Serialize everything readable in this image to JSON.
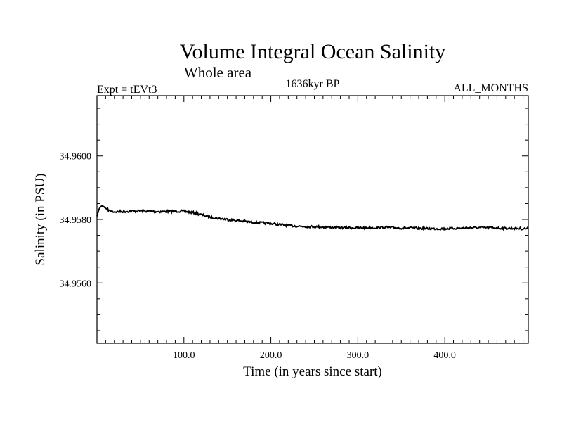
{
  "chart_data": {
    "type": "line",
    "title": "Volume Integral Ocean Salinity",
    "subtitle": "Whole area",
    "experiment_label": "Expt = tEVt3",
    "period_label": "1636kyr BP",
    "months_label": "ALL_MONTHS",
    "xlabel": "Time (in years since start)",
    "ylabel": "Salinity (in PSU)",
    "xlim": [
      0,
      496
    ],
    "ylim": [
      34.9541,
      34.9619
    ],
    "x_ticks": [
      100,
      200,
      300,
      400
    ],
    "x_tick_labels": [
      "100.0",
      "200.0",
      "300.0",
      "400.0"
    ],
    "y_ticks": [
      34.956,
      34.958,
      34.96
    ],
    "y_tick_labels": [
      "34.9560",
      "34.9580",
      "34.9600"
    ],
    "grid": false,
    "series": [
      {
        "name": "salinity",
        "color": "#000000",
        "x": [
          0,
          2,
          4,
          6,
          8,
          10,
          14,
          20,
          30,
          40,
          50,
          60,
          70,
          80,
          90,
          100,
          110,
          120,
          130,
          140,
          150,
          160,
          170,
          180,
          190,
          200,
          210,
          220,
          230,
          240,
          250,
          260,
          270,
          280,
          290,
          300,
          310,
          320,
          330,
          340,
          350,
          360,
          370,
          380,
          390,
          400,
          410,
          420,
          430,
          440,
          450,
          460,
          470,
          480,
          490,
          496
        ],
        "y": [
          34.9581,
          34.9583,
          34.9584,
          34.95843,
          34.9584,
          34.95835,
          34.95828,
          34.95824,
          34.95825,
          34.95826,
          34.95827,
          34.95826,
          34.95825,
          34.95825,
          34.95826,
          34.95826,
          34.95822,
          34.95815,
          34.95808,
          34.95803,
          34.958,
          34.95797,
          34.95794,
          34.95791,
          34.95789,
          34.95787,
          34.95784,
          34.95781,
          34.95779,
          34.95778,
          34.95777,
          34.95776,
          34.95775,
          34.95774,
          34.95774,
          34.95773,
          34.95774,
          34.95774,
          34.95775,
          34.95774,
          34.95773,
          34.95773,
          34.95772,
          34.95771,
          34.95771,
          34.95771,
          34.95772,
          34.95773,
          34.95774,
          34.95774,
          34.95774,
          34.95773,
          34.95772,
          34.95772,
          34.95771,
          34.95771
        ]
      }
    ]
  }
}
